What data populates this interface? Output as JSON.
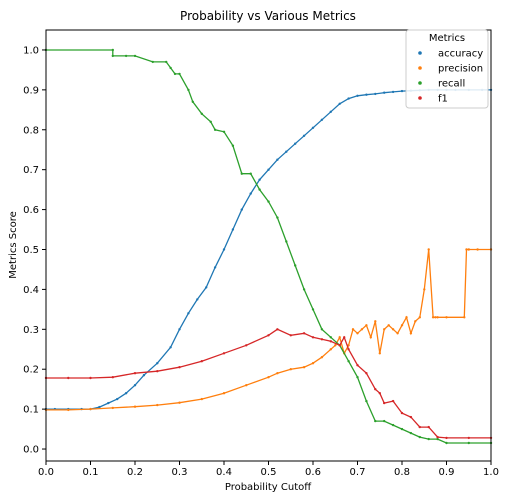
{
  "chart_data": {
    "type": "line",
    "title": "Probability vs Various Metrics",
    "xlabel": "Probability Cutoff",
    "ylabel": "Metrics Score",
    "xlim": [
      0.0,
      1.0
    ],
    "ylim": [
      -0.03,
      1.05
    ],
    "xticks": [
      0.0,
      0.1,
      0.2,
      0.3,
      0.4,
      0.5,
      0.6,
      0.7,
      0.8,
      0.9,
      1.0
    ],
    "xtick_labels": [
      "0.0",
      "0.1",
      "0.2",
      "0.3",
      "0.4",
      "0.5",
      "0.6",
      "0.7",
      "0.8",
      "0.9",
      "1.0"
    ],
    "yticks": [
      0.0,
      0.1,
      0.2,
      0.3,
      0.4,
      0.5,
      0.6,
      0.7,
      0.8,
      0.9,
      1.0
    ],
    "ytick_labels": [
      "0.0",
      "0.1",
      "0.2",
      "0.3",
      "0.4",
      "0.5",
      "0.6",
      "0.7",
      "0.8",
      "0.9",
      "1.0"
    ],
    "grid": false,
    "legend": {
      "title": "Metrics",
      "placement": "top-right"
    },
    "series": [
      {
        "name": "accuracy",
        "color": "#1f77b4",
        "x": [
          0.0,
          0.02,
          0.05,
          0.08,
          0.1,
          0.12,
          0.14,
          0.16,
          0.18,
          0.2,
          0.22,
          0.25,
          0.28,
          0.3,
          0.32,
          0.34,
          0.36,
          0.38,
          0.4,
          0.42,
          0.44,
          0.46,
          0.48,
          0.5,
          0.52,
          0.54,
          0.56,
          0.58,
          0.6,
          0.62,
          0.64,
          0.66,
          0.68,
          0.7,
          0.72,
          0.74,
          0.76,
          0.78,
          0.8,
          0.82,
          0.84,
          0.86,
          0.88,
          0.9,
          0.92,
          0.95,
          0.98,
          1.0
        ],
        "y": [
          0.1,
          0.1,
          0.1,
          0.1,
          0.1,
          0.105,
          0.115,
          0.125,
          0.14,
          0.16,
          0.185,
          0.215,
          0.255,
          0.3,
          0.34,
          0.375,
          0.405,
          0.455,
          0.5,
          0.55,
          0.6,
          0.64,
          0.675,
          0.7,
          0.725,
          0.745,
          0.765,
          0.785,
          0.805,
          0.825,
          0.845,
          0.865,
          0.878,
          0.885,
          0.888,
          0.89,
          0.893,
          0.895,
          0.897,
          0.898,
          0.899,
          0.9,
          0.9,
          0.9,
          0.9,
          0.9,
          0.9,
          0.9
        ]
      },
      {
        "name": "precision",
        "color": "#ff7f0e",
        "x": [
          0.0,
          0.05,
          0.1,
          0.15,
          0.2,
          0.25,
          0.3,
          0.35,
          0.4,
          0.45,
          0.5,
          0.52,
          0.55,
          0.58,
          0.6,
          0.62,
          0.64,
          0.65,
          0.66,
          0.67,
          0.68,
          0.69,
          0.7,
          0.71,
          0.72,
          0.73,
          0.74,
          0.75,
          0.76,
          0.77,
          0.78,
          0.79,
          0.8,
          0.81,
          0.82,
          0.83,
          0.84,
          0.85,
          0.86,
          0.87,
          0.875,
          0.88,
          0.9,
          0.94,
          0.945,
          0.95,
          0.97,
          1.0
        ],
        "y": [
          0.098,
          0.098,
          0.1,
          0.103,
          0.106,
          0.11,
          0.116,
          0.125,
          0.14,
          0.16,
          0.18,
          0.19,
          0.2,
          0.205,
          0.215,
          0.23,
          0.25,
          0.26,
          0.28,
          0.24,
          0.26,
          0.3,
          0.29,
          0.3,
          0.31,
          0.28,
          0.32,
          0.24,
          0.3,
          0.31,
          0.3,
          0.29,
          0.31,
          0.33,
          0.29,
          0.32,
          0.33,
          0.4,
          0.5,
          0.33,
          0.33,
          0.33,
          0.33,
          0.33,
          0.5,
          0.5,
          0.5,
          0.5
        ]
      },
      {
        "name": "recall",
        "color": "#2ca02c",
        "x": [
          0.0,
          0.15,
          0.15,
          0.18,
          0.2,
          0.24,
          0.27,
          0.28,
          0.29,
          0.3,
          0.32,
          0.33,
          0.35,
          0.37,
          0.38,
          0.4,
          0.42,
          0.44,
          0.46,
          0.48,
          0.5,
          0.52,
          0.54,
          0.56,
          0.58,
          0.6,
          0.62,
          0.64,
          0.66,
          0.68,
          0.7,
          0.72,
          0.74,
          0.76,
          0.78,
          0.8,
          0.82,
          0.84,
          0.86,
          0.88,
          0.9,
          0.95,
          1.0
        ],
        "y": [
          1.0,
          1.0,
          0.985,
          0.985,
          0.985,
          0.97,
          0.97,
          0.955,
          0.94,
          0.94,
          0.9,
          0.87,
          0.84,
          0.82,
          0.8,
          0.795,
          0.76,
          0.69,
          0.69,
          0.65,
          0.62,
          0.58,
          0.52,
          0.46,
          0.4,
          0.35,
          0.3,
          0.28,
          0.26,
          0.22,
          0.18,
          0.12,
          0.07,
          0.07,
          0.06,
          0.05,
          0.04,
          0.03,
          0.025,
          0.025,
          0.015,
          0.015,
          0.015
        ]
      },
      {
        "name": "f1",
        "color": "#d62728",
        "x": [
          0.0,
          0.05,
          0.1,
          0.15,
          0.2,
          0.25,
          0.3,
          0.35,
          0.4,
          0.45,
          0.5,
          0.52,
          0.55,
          0.58,
          0.6,
          0.62,
          0.64,
          0.66,
          0.67,
          0.68,
          0.7,
          0.72,
          0.74,
          0.75,
          0.76,
          0.78,
          0.8,
          0.82,
          0.84,
          0.86,
          0.88,
          0.9,
          0.95,
          1.0
        ],
        "y": [
          0.178,
          0.178,
          0.178,
          0.18,
          0.19,
          0.195,
          0.205,
          0.22,
          0.24,
          0.26,
          0.285,
          0.3,
          0.285,
          0.29,
          0.28,
          0.275,
          0.27,
          0.26,
          0.28,
          0.25,
          0.21,
          0.19,
          0.15,
          0.14,
          0.115,
          0.12,
          0.09,
          0.08,
          0.055,
          0.055,
          0.03,
          0.028,
          0.028,
          0.028
        ]
      }
    ]
  }
}
